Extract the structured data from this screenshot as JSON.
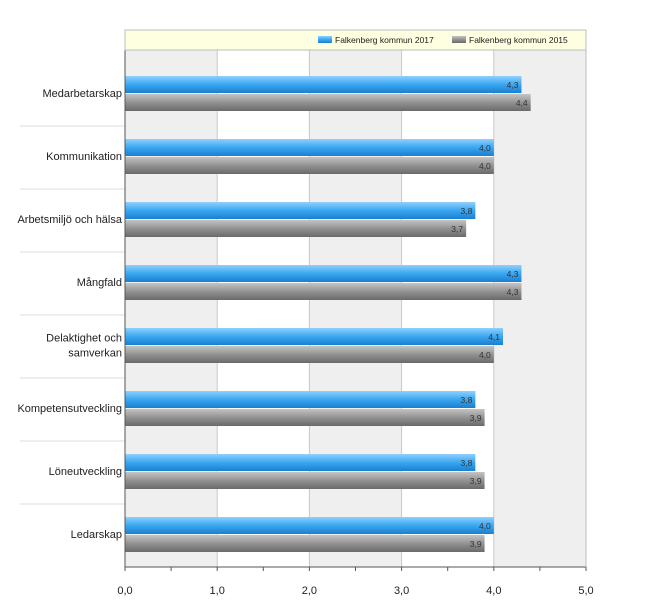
{
  "chart_data": {
    "type": "bar",
    "orientation": "horizontal",
    "categories": [
      "Medarbetarskap",
      "Kommunikation",
      "Arbetsmiljö och hälsa",
      "Mångfald",
      "Delaktighet och samverkan",
      "Kompetensutveckling",
      "Löneutveckling",
      "Ledarskap"
    ],
    "category_display": [
      [
        "Medarbetarskap"
      ],
      [
        "Kommunikation"
      ],
      [
        "Arbetsmiljö och hälsa"
      ],
      [
        "Mångfald"
      ],
      [
        "Delaktighet och",
        "samverkan"
      ],
      [
        "Kompetensutveckling"
      ],
      [
        "Löneutveckling"
      ],
      [
        "Ledarskap"
      ]
    ],
    "series": [
      {
        "name": "Falkenberg kommun 2017",
        "color": "#2f9be8",
        "values": [
          4.3,
          4.0,
          3.8,
          4.3,
          4.1,
          3.8,
          3.8,
          4.0
        ],
        "labels": [
          "4,3",
          "4,0",
          "3,8",
          "4,3",
          "4,1",
          "3,8",
          "3,8",
          "4,0"
        ]
      },
      {
        "name": "Falkenberg kommun 2015",
        "color": "#8a8a8a",
        "values": [
          4.4,
          4.0,
          3.7,
          4.3,
          4.0,
          3.9,
          3.9,
          3.9
        ],
        "labels": [
          "4,4",
          "4,0",
          "3,7",
          "4,3",
          "4,0",
          "3,9",
          "3,9",
          "3,9"
        ]
      }
    ],
    "xlim": [
      0,
      5
    ],
    "xticks": [
      0,
      1,
      2,
      3,
      4,
      5
    ],
    "xtick_labels": [
      "0,0",
      "1,0",
      "2,0",
      "3,0",
      "4,0",
      "5,0"
    ],
    "grid": true,
    "legend": "top-right",
    "legend_background": "#fefee0",
    "band_colors": [
      "#efefef",
      "#ffffff"
    ]
  }
}
